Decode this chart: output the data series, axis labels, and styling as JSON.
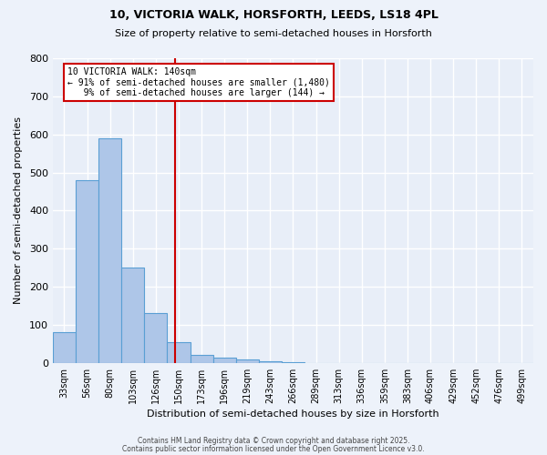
{
  "title_line1": "10, VICTORIA WALK, HORSFORTH, LEEDS, LS18 4PL",
  "title_line2": "Size of property relative to semi-detached houses in Horsforth",
  "xlabel": "Distribution of semi-detached houses by size in Horsforth",
  "ylabel": "Number of semi-detached properties",
  "bin_labels": [
    "33sqm",
    "56sqm",
    "80sqm",
    "103sqm",
    "126sqm",
    "150sqm",
    "173sqm",
    "196sqm",
    "219sqm",
    "243sqm",
    "266sqm",
    "289sqm",
    "313sqm",
    "336sqm",
    "359sqm",
    "383sqm",
    "406sqm",
    "429sqm",
    "452sqm",
    "476sqm",
    "499sqm"
  ],
  "bar_values": [
    80,
    480,
    590,
    250,
    130,
    55,
    20,
    15,
    10,
    5,
    3,
    0,
    0,
    0,
    0,
    0,
    0,
    0,
    0,
    0,
    0
  ],
  "bar_color": "#aec6e8",
  "bar_edgecolor": "#5a9fd4",
  "background_color": "#e8eef8",
  "fig_background_color": "#edf2fa",
  "grid_color": "#ffffff",
  "vline_x_index": 4.85,
  "vline_color": "#cc0000",
  "annotation_text": "10 VICTORIA WALK: 140sqm\n← 91% of semi-detached houses are smaller (1,480)\n   9% of semi-detached houses are larger (144) →",
  "annotation_box_color": "#ffffff",
  "annotation_box_edgecolor": "#cc0000",
  "ylim": [
    0,
    800
  ],
  "yticks": [
    0,
    100,
    200,
    300,
    400,
    500,
    600,
    700,
    800
  ],
  "footnote1": "Contains HM Land Registry data © Crown copyright and database right 2025.",
  "footnote2": "Contains public sector information licensed under the Open Government Licence v3.0."
}
